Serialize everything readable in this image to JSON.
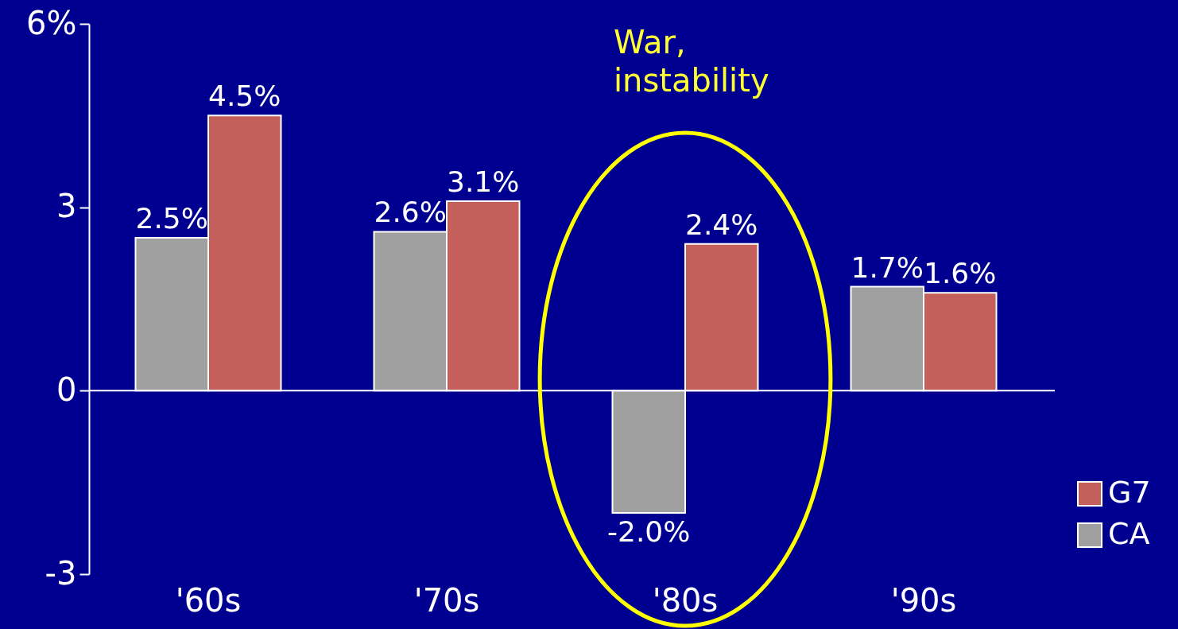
{
  "chart_data": {
    "type": "bar",
    "categories": [
      "'60s",
      "'70s",
      "'80s",
      "'90s"
    ],
    "series": [
      {
        "name": "CA",
        "color": "#a0a0a0",
        "values": [
          2.5,
          2.6,
          -2.0,
          1.7
        ],
        "value_labels": [
          "2.5%",
          "2.6%",
          "-2.0%",
          "1.7%"
        ]
      },
      {
        "name": "G7",
        "color": "#c55f5c",
        "values": [
          4.5,
          3.1,
          2.4,
          1.6
        ],
        "value_labels": [
          "4.5%",
          "3.1%",
          "2.4%",
          "1.6%"
        ]
      }
    ],
    "ylim": [
      -3,
      6
    ],
    "yticks": [
      -3,
      0,
      3,
      {
        "value": 6,
        "label": "6%"
      }
    ],
    "ref_lines": [
      {
        "axis": "y",
        "value": 0,
        "color": "#ffffff"
      }
    ],
    "annotations": [
      "War,\ninstability"
    ],
    "legend": "bottom right",
    "grid": false
  }
}
